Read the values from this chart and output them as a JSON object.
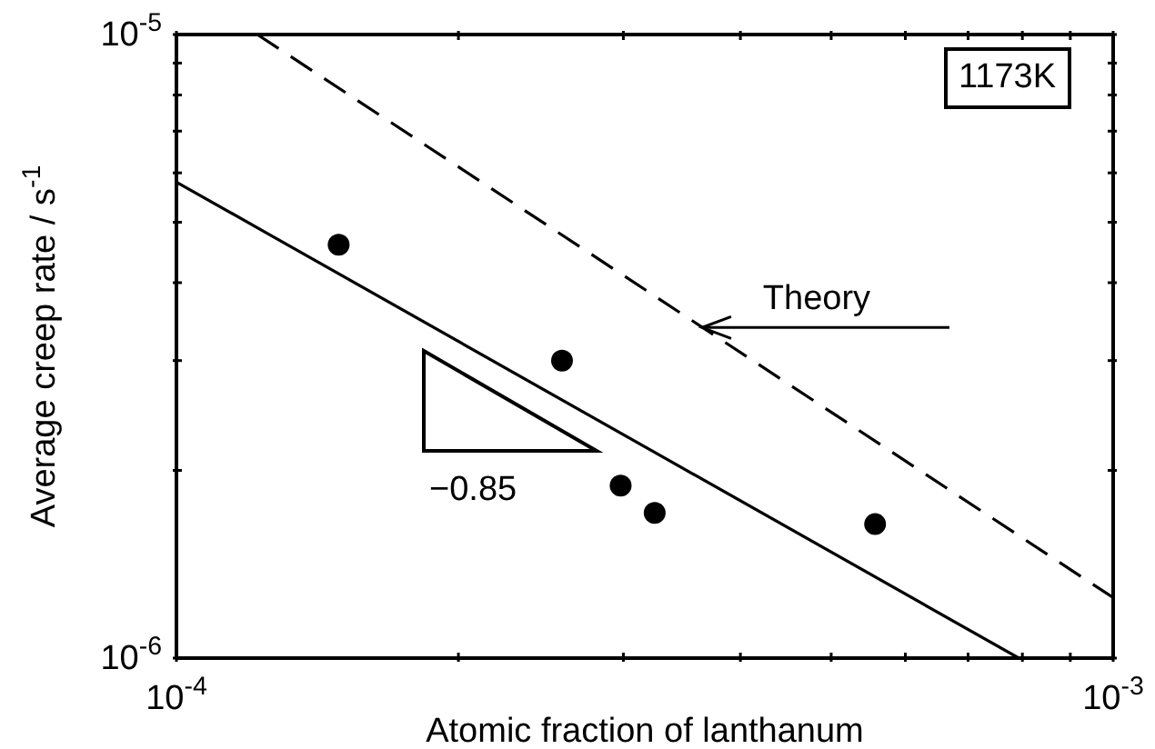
{
  "chart_data": {
    "type": "scatter",
    "xlabel": "Atomic fraction of lanthanum",
    "ylabel": "Average creep rate / s$^{-1}$",
    "log": "xy",
    "xlim": [
      0.0001,
      0.001
    ],
    "ylim": [
      1e-06,
      1e-05
    ],
    "xticks": [
      {
        "value": 0.0001,
        "label": "10$^{-4}$"
      },
      {
        "value": 0.0002,
        "label": null
      },
      {
        "value": 0.0003,
        "label": null
      },
      {
        "value": 0.0004,
        "label": null
      },
      {
        "value": 0.0005,
        "label": null
      },
      {
        "value": 0.0006,
        "label": null
      },
      {
        "value": 0.0007,
        "label": null
      },
      {
        "value": 0.0008,
        "label": null
      },
      {
        "value": 0.0009,
        "label": null
      },
      {
        "value": 0.001,
        "label": "10$^{-3}$"
      }
    ],
    "yticks": [
      {
        "value": 1e-06,
        "label": "10$^{-6}$"
      },
      {
        "value": 2e-06,
        "label": null
      },
      {
        "value": 3e-06,
        "label": null
      },
      {
        "value": 4e-06,
        "label": null
      },
      {
        "value": 5e-06,
        "label": null
      },
      {
        "value": 6e-06,
        "label": null
      },
      {
        "value": 7e-06,
        "label": null
      },
      {
        "value": 8e-06,
        "label": null
      },
      {
        "value": 9e-06,
        "label": null
      },
      {
        "value": 1e-05,
        "label": "10$^{-5}$"
      }
    ],
    "series": [
      {
        "color": "#000000",
        "marker": "circle",
        "x": [
          0.000149,
          0.000258,
          0.000298,
          0.000324,
          0.000557
        ],
        "values": [
          4.6e-06,
          3e-06,
          1.89e-06,
          1.71e-06,
          1.64e-06
        ]
      },
      {
        "type": "line",
        "color": "#000000",
        "line_style": "solid",
        "x": [
          0.0001,
          0.000793
        ],
        "values": [
          5.8e-06,
          1e-06
        ]
      },
      {
        "type": "line",
        "color": "#000000",
        "line_style": "dashed",
        "x": [
          0.000122,
          0.001
        ],
        "values": [
          1e-05,
          1.25e-06
        ]
      }
    ],
    "annotations": [
      "1173K",
      {
        "text": "Theory",
        "x": 0.000364,
        "y": 3.39e-06
      },
      "−0.85"
    ]
  }
}
